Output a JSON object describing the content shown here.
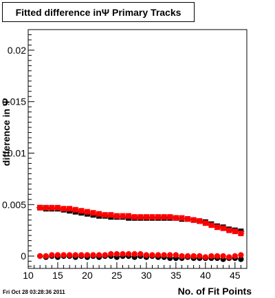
{
  "chart_data": {
    "type": "scatter",
    "title": "Fitted difference inΨ  Primary Tracks",
    "xlabel": "No. of Fit Points",
    "ylabel": "difference in Ψ",
    "xlim": [
      10,
      47
    ],
    "ylim": [
      -0.0012,
      0.022
    ],
    "x_ticks": [
      "10",
      "15",
      "20",
      "25",
      "30",
      "35",
      "40",
      "45"
    ],
    "y_ticks": [
      "0",
      "0.005",
      "0.01",
      "0.015",
      "0.02"
    ],
    "grid": false,
    "x": [
      12,
      13,
      14,
      15,
      16,
      17,
      18,
      19,
      20,
      21,
      22,
      23,
      24,
      25,
      26,
      27,
      28,
      29,
      30,
      31,
      32,
      33,
      34,
      35,
      36,
      37,
      38,
      39,
      40,
      41,
      42,
      43,
      44,
      45,
      46
    ],
    "series": [
      {
        "color": "#000000",
        "marker": "square",
        "values": [
          0.0047,
          0.0046,
          0.0046,
          0.0046,
          0.0045,
          0.0044,
          0.0043,
          0.0042,
          0.0041,
          0.004,
          0.0039,
          0.0039,
          0.0038,
          0.0038,
          0.0038,
          0.0037,
          0.0037,
          0.0037,
          0.0037,
          0.0037,
          0.0037,
          0.0037,
          0.0037,
          0.0037,
          0.0036,
          0.0036,
          0.0035,
          0.0034,
          0.0033,
          0.0031,
          0.0029,
          0.0028,
          0.0026,
          0.0025,
          0.0024
        ]
      },
      {
        "color": "#ff0000",
        "marker": "square",
        "values": [
          0.0047,
          0.0047,
          0.0047,
          0.0047,
          0.0046,
          0.0046,
          0.0045,
          0.0044,
          0.0043,
          0.0042,
          0.0041,
          0.004,
          0.004,
          0.0039,
          0.0039,
          0.0039,
          0.0038,
          0.0038,
          0.0038,
          0.0038,
          0.0038,
          0.0038,
          0.0038,
          0.0037,
          0.0037,
          0.0036,
          0.0035,
          0.0034,
          0.0032,
          0.003,
          0.0028,
          0.0027,
          0.0025,
          0.0024,
          0.0022
        ]
      },
      {
        "color": "#000000",
        "marker": "circle",
        "values": [
          0.0,
          -0.0001,
          0.0,
          -0.0001,
          0.0,
          0.0,
          -0.0001,
          0.0,
          -0.0001,
          0.0,
          -0.0001,
          0.0,
          0.0,
          -0.0001,
          0.0,
          0.0,
          -0.0001,
          0.0,
          -0.0001,
          0.0,
          -0.0001,
          -0.0001,
          -0.0002,
          -0.0002,
          -0.0002,
          -0.0001,
          -0.0002,
          -0.0002,
          -0.0002,
          -0.0002,
          -0.0002,
          -0.0003,
          -0.0002,
          -0.0002,
          -0.0003
        ]
      },
      {
        "color": "#ff0000",
        "marker": "circle",
        "values": [
          0.0,
          0.0,
          0.0001,
          0.0001,
          0.0001,
          0.0001,
          0.0001,
          0.0001,
          0.0001,
          0.0001,
          0.0001,
          0.0001,
          0.0002,
          0.0002,
          0.0002,
          0.0002,
          0.0002,
          0.0002,
          0.0001,
          0.0001,
          0.0001,
          0.0001,
          0.0001,
          0.0001,
          0.0,
          0.0,
          0.0,
          0.0,
          -0.0001,
          0.0,
          0.0,
          0.0,
          -0.0001,
          0.0,
          0.0001
        ]
      }
    ]
  },
  "footer": {
    "timestamp": "Fri Oct 28 03:28:36 2011"
  }
}
